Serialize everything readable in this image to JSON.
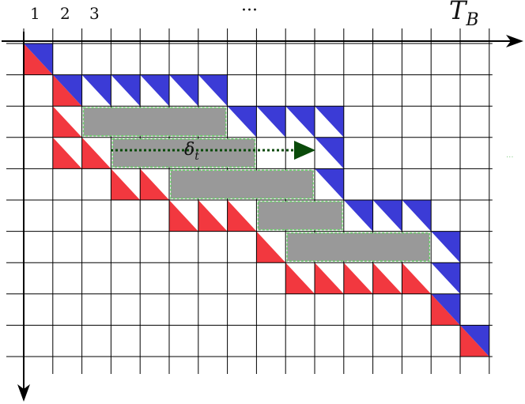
{
  "labels": {
    "col1": "1",
    "col2": "2",
    "col3": "3",
    "ellipsis": "···",
    "tb_main": "T",
    "tb_sub": "B",
    "delta_main": "δ",
    "delta_sub": "t"
  },
  "colors": {
    "red": "#f2383f",
    "blue": "#3b3bd6",
    "gray": "#999999",
    "grid": "#000000",
    "arrow": "#0a4a0a",
    "box_border": "#66cc66"
  },
  "diagram": {
    "grid_rows": 10,
    "grid_cols": 16,
    "diagonal_pairs": [
      {
        "row": 0,
        "col": 0
      },
      {
        "row": 9,
        "col": 15
      }
    ],
    "blue_cells": [
      {
        "row": 1,
        "col": 1
      },
      {
        "row": 1,
        "col": 2
      },
      {
        "row": 1,
        "col": 3
      },
      {
        "row": 1,
        "col": 4
      },
      {
        "row": 1,
        "col": 5
      },
      {
        "row": 1,
        "col": 6
      },
      {
        "row": 2,
        "col": 7
      },
      {
        "row": 2,
        "col": 8
      },
      {
        "row": 2,
        "col": 9
      },
      {
        "row": 2,
        "col": 10
      },
      {
        "row": 3,
        "col": 10
      },
      {
        "row": 4,
        "col": 10
      },
      {
        "row": 5,
        "col": 11
      },
      {
        "row": 5,
        "col": 12
      },
      {
        "row": 5,
        "col": 13
      },
      {
        "row": 6,
        "col": 14
      },
      {
        "row": 7,
        "col": 14
      },
      {
        "row": 8,
        "col": 14
      }
    ],
    "red_cells": [
      {
        "row": 1,
        "col": 1
      },
      {
        "row": 2,
        "col": 1
      },
      {
        "row": 3,
        "col": 1
      },
      {
        "row": 3,
        "col": 2
      },
      {
        "row": 4,
        "col": 3
      },
      {
        "row": 4,
        "col": 4
      },
      {
        "row": 5,
        "col": 5
      },
      {
        "row": 5,
        "col": 6
      },
      {
        "row": 5,
        "col": 7
      },
      {
        "row": 6,
        "col": 8
      },
      {
        "row": 7,
        "col": 9
      },
      {
        "row": 7,
        "col": 10
      },
      {
        "row": 7,
        "col": 11
      },
      {
        "row": 7,
        "col": 12
      },
      {
        "row": 7,
        "col": 13
      },
      {
        "row": 8,
        "col": 14
      }
    ],
    "gray_blocks": [
      {
        "row": 2,
        "col_start": 2,
        "col_span": 5
      },
      {
        "row": 3,
        "col_start": 3,
        "col_span": 5
      },
      {
        "row": 4,
        "col_start": 5,
        "col_span": 5
      },
      {
        "row": 5,
        "col_start": 8,
        "col_span": 3
      },
      {
        "row": 6,
        "col_start": 9,
        "col_span": 5
      }
    ]
  }
}
